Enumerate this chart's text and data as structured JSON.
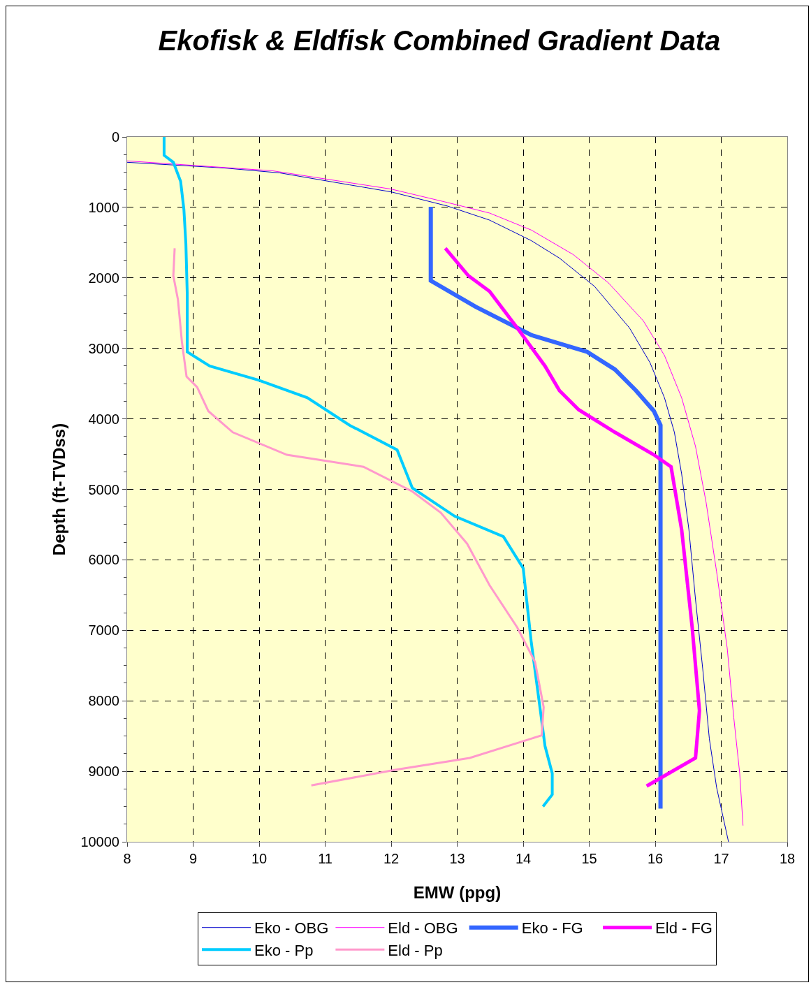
{
  "chart_data": {
    "type": "line",
    "title": "Ekofisk & Eldfisk Combined Gradient Data",
    "xlabel": "EMW (ppg)",
    "ylabel": "Depth (ft-TVDss)",
    "xlim": [
      8,
      18
    ],
    "xticks": [
      8,
      9,
      10,
      11,
      12,
      13,
      14,
      15,
      16,
      17,
      18
    ],
    "ylim": [
      10000,
      0
    ],
    "yticks": [
      0,
      1000,
      2000,
      3000,
      4000,
      5000,
      6000,
      7000,
      8000,
      9000,
      10000
    ],
    "grid": true,
    "legend": "bottom",
    "marker": "none",
    "line_style": "solid",
    "series": [
      {
        "name": "Eko - OBG",
        "color": "#0000cc",
        "x": [
          8,
          9.46,
          10.31,
          11.37,
          12.0,
          12.85,
          13.49,
          14.12,
          14.55,
          15.08,
          15.61,
          15.92,
          16.14,
          16.29,
          16.4,
          16.51,
          16.61,
          16.72,
          16.82,
          16.93,
          17.11
        ],
        "values": [
          360,
          440,
          510,
          680,
          780,
          980,
          1180,
          1470,
          1720,
          2120,
          2710,
          3200,
          3700,
          4190,
          4780,
          5570,
          6560,
          7550,
          8540,
          9230,
          10000
        ]
      },
      {
        "name": "Eld - OBG",
        "color": "#ff00ff",
        "x": [
          8,
          10.2,
          12.0,
          12.85,
          13.49,
          14.12,
          14.76,
          15.29,
          15.82,
          16.14,
          16.4,
          16.61,
          16.77,
          16.93,
          17.09,
          17.19,
          17.28,
          17.33
        ],
        "values": [
          340,
          480,
          740,
          930,
          1080,
          1320,
          1670,
          2070,
          2610,
          3100,
          3700,
          4390,
          5180,
          6170,
          7250,
          8240,
          9030,
          9770
        ]
      },
      {
        "name": "Eko - FG",
        "color": "#3366ff",
        "x": [
          12.6,
          12.6,
          13.28,
          14.12,
          14.97,
          15.39,
          15.71,
          15.98,
          16.08,
          16.08
        ],
        "values": [
          990,
          2040,
          2410,
          2810,
          3050,
          3300,
          3600,
          3890,
          4090,
          9530
        ]
      },
      {
        "name": "Eld - FG",
        "color": "#ff00ff",
        "x": [
          12.82,
          13.17,
          13.49,
          13.91,
          14.33,
          14.55,
          14.84,
          15.39,
          15.98,
          16.24,
          16.4,
          16.56,
          16.67,
          16.61,
          15.87
        ],
        "values": [
          1580,
          1970,
          2190,
          2710,
          3250,
          3600,
          3870,
          4190,
          4510,
          4680,
          5570,
          6960,
          8140,
          8810,
          9210
        ]
      },
      {
        "name": "Eko - Pp",
        "color": "#00ccff",
        "x": [
          8.56,
          8.56,
          8.7,
          8.81,
          8.86,
          8.89,
          8.91,
          8.91,
          9.25,
          9.99,
          10.73,
          11.37,
          12.09,
          12.32,
          12.96,
          13.7,
          14.0,
          14.12,
          14.26,
          14.33,
          14.44,
          14.44,
          14.3
        ],
        "values": [
          0,
          260,
          360,
          630,
          1030,
          1520,
          2210,
          3050,
          3250,
          3450,
          3700,
          4090,
          4440,
          4980,
          5380,
          5670,
          6120,
          7150,
          8140,
          8640,
          9030,
          9330,
          9500
        ]
      },
      {
        "name": "Eld - Pp",
        "color": "#ff99cc",
        "x": [
          8.72,
          8.7,
          8.77,
          8.83,
          8.9,
          9.06,
          9.23,
          9.6,
          10.42,
          11.58,
          12.32,
          12.75,
          13.15,
          13.49,
          13.91,
          14.18,
          14.31,
          14.28,
          13.19,
          12.06,
          10.79
        ],
        "values": [
          1580,
          1970,
          2310,
          2910,
          3400,
          3550,
          3890,
          4190,
          4510,
          4680,
          5030,
          5330,
          5770,
          6360,
          6960,
          7450,
          8090,
          8490,
          8810,
          8980,
          9200
        ]
      }
    ]
  }
}
